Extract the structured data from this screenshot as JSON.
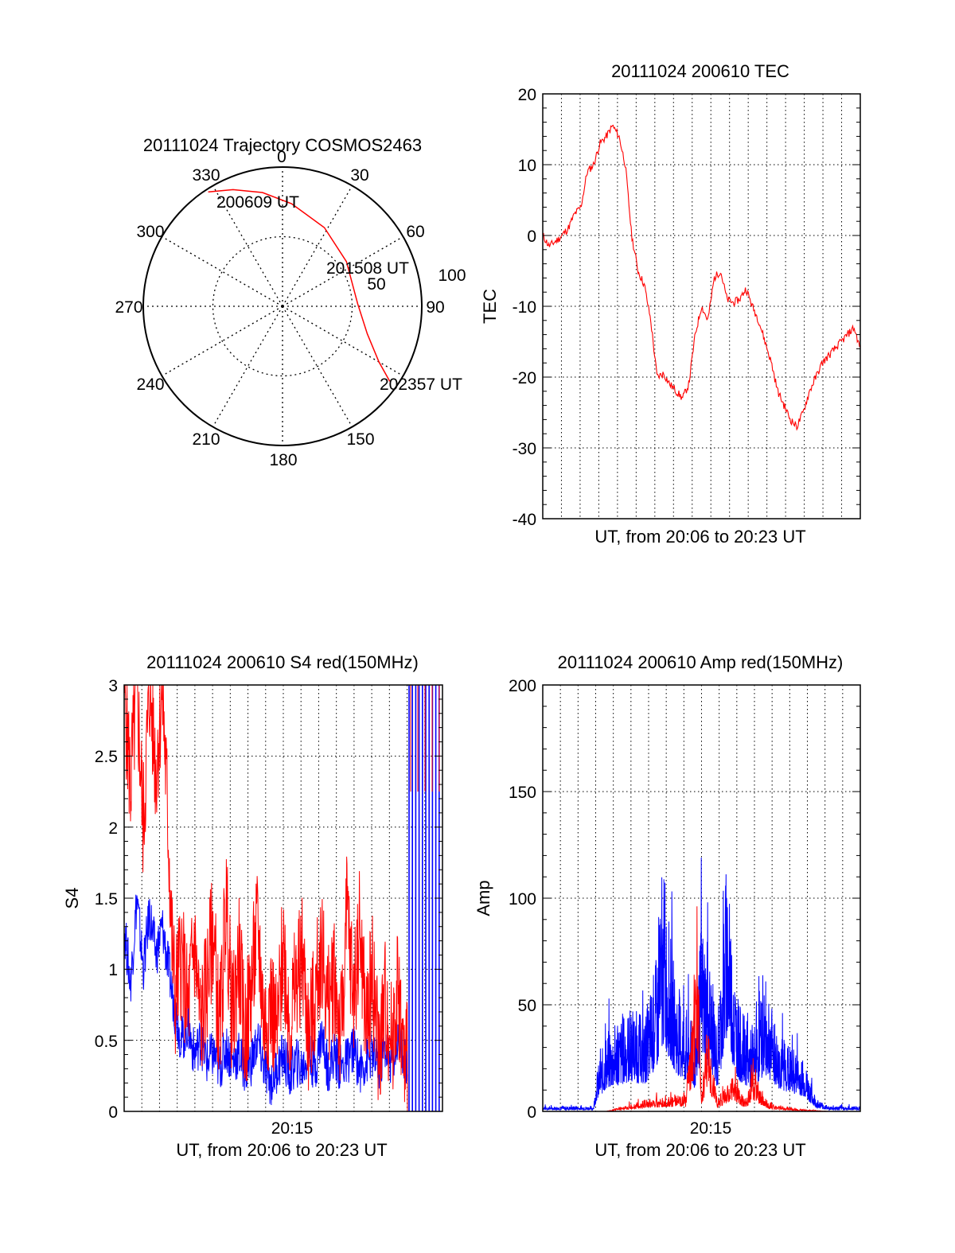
{
  "chart_data": [
    {
      "id": "trajectory",
      "type": "polar",
      "title": "20111024 Trajectory COSMOS2463",
      "azimuth_labels": [
        "0",
        "30",
        "60",
        "90",
        "150",
        "180",
        "210",
        "240",
        "270",
        "300",
        "330"
      ],
      "radial_labels": [
        "50",
        "100"
      ],
      "rlim": [
        0,
        100
      ],
      "grid": true,
      "series": [
        {
          "color": "#ff0000",
          "points": [
            {
              "az": 327,
              "el": 2
            },
            {
              "az": 337,
              "el": 9
            },
            {
              "az": 350,
              "el": 17
            },
            {
              "az": 5,
              "el": 26
            },
            {
              "az": 28,
              "el": 36
            },
            {
              "az": 55,
              "el": 44
            },
            {
              "az": 88,
              "el": 46
            },
            {
              "az": 108,
              "el": 36
            },
            {
              "az": 120,
              "el": 20
            },
            {
              "az": 125,
              "el": 6
            }
          ]
        }
      ],
      "annotations": [
        {
          "text": "200609 UT",
          "az": 327,
          "el": 2
        },
        {
          "text": "201508 UT",
          "az": 56,
          "el": 44
        },
        {
          "text": "202357 UT",
          "az": 125,
          "el": 6
        }
      ]
    },
    {
      "id": "tec",
      "type": "line",
      "title": "20111024 200610 TEC",
      "xlabel": "UT, from 20:06 to 20:23 UT",
      "ylabel": "TEC",
      "ylim": [
        -40,
        20
      ],
      "yticks": [
        "20",
        "10",
        "0",
        "-10",
        "-20",
        "-30",
        "-40"
      ],
      "grid": true,
      "series": [
        {
          "color": "#ff0000",
          "x": [
            0.0,
            0.02,
            0.05,
            0.08,
            0.1,
            0.12,
            0.14,
            0.16,
            0.18,
            0.2,
            0.22,
            0.24,
            0.26,
            0.28,
            0.3,
            0.32,
            0.34,
            0.36,
            0.38,
            0.4,
            0.42,
            0.44,
            0.46,
            0.48,
            0.5,
            0.52,
            0.54,
            0.56,
            0.58,
            0.6,
            0.62,
            0.64,
            0.66,
            0.68,
            0.7,
            0.72,
            0.74,
            0.76,
            0.78,
            0.8,
            0.82,
            0.84,
            0.86,
            0.88,
            0.9,
            0.92,
            0.94,
            0.96,
            0.98,
            1.0
          ],
          "values": [
            0,
            -1.5,
            -0.5,
            1,
            3,
            4,
            9,
            10,
            13,
            14,
            15.5,
            14,
            10,
            0,
            -5,
            -7,
            -12,
            -20,
            -19.5,
            -21,
            -22,
            -23,
            -21,
            -14,
            -10,
            -12,
            -6,
            -5,
            -9,
            -9.5,
            -9,
            -7.5,
            -10,
            -12,
            -15,
            -18,
            -22,
            -24,
            -26,
            -27,
            -25,
            -22,
            -20,
            -18,
            -17,
            -16,
            -15,
            -14,
            -13,
            -16
          ]
        }
      ]
    },
    {
      "id": "s4",
      "type": "line",
      "title": "20111024 200610 S4 red(150MHz)",
      "xlabel": "UT, from 20:06 to 20:23 UT",
      "ylabel": "S4",
      "ylim": [
        0,
        3
      ],
      "yticks": [
        "3",
        "2.5",
        "2",
        "1.5",
        "1",
        "0.5",
        "0"
      ],
      "xticks": [
        "20:15"
      ],
      "grid": true,
      "series": [
        {
          "color": "#ff0000",
          "x": [
            0.0,
            0.02,
            0.04,
            0.06,
            0.08,
            0.1,
            0.12,
            0.14,
            0.15,
            0.16,
            0.18,
            0.2,
            0.22,
            0.24,
            0.26,
            0.28,
            0.3,
            0.32,
            0.34,
            0.36,
            0.38,
            0.4,
            0.42,
            0.44,
            0.46,
            0.48,
            0.5,
            0.52,
            0.54,
            0.56,
            0.58,
            0.6,
            0.62,
            0.64,
            0.66,
            0.68,
            0.7,
            0.72,
            0.74,
            0.76,
            0.78,
            0.8,
            0.82,
            0.84,
            0.86,
            0.88,
            0.89
          ],
          "values": [
            3,
            2.3,
            3,
            2.0,
            3,
            2.4,
            3,
            1.9,
            1.2,
            0.8,
            1.1,
            0.7,
            1.2,
            0.6,
            0.9,
            1.3,
            0.5,
            1.5,
            0.6,
            1.1,
            0.5,
            0.9,
            1.3,
            0.6,
            0.8,
            0.5,
            1.2,
            0.6,
            0.9,
            1.1,
            0.5,
            0.8,
            1.2,
            0.7,
            1.0,
            0.5,
            1.4,
            0.8,
            1.3,
            0.6,
            1.0,
            0.4,
            0.8,
            0.5,
            0.9,
            0.3,
            0.4
          ]
        },
        {
          "color": "#0000ff",
          "x": [
            0.0,
            0.02,
            0.04,
            0.06,
            0.08,
            0.1,
            0.12,
            0.14,
            0.16,
            0.18,
            0.2,
            0.22,
            0.24,
            0.26,
            0.28,
            0.3,
            0.32,
            0.34,
            0.36,
            0.38,
            0.4,
            0.42,
            0.44,
            0.46,
            0.48,
            0.5,
            0.52,
            0.54,
            0.56,
            0.58,
            0.6,
            0.62,
            0.64,
            0.66,
            0.68,
            0.7,
            0.72,
            0.74,
            0.76,
            0.78,
            0.8,
            0.82,
            0.84,
            0.86,
            0.88,
            0.89
          ],
          "values": [
            1.3,
            0.9,
            1.5,
            1.0,
            1.4,
            1.1,
            1.3,
            1.0,
            0.7,
            0.5,
            0.6,
            0.4,
            0.5,
            0.35,
            0.4,
            0.3,
            0.45,
            0.35,
            0.4,
            0.3,
            0.35,
            0.5,
            0.3,
            0.2,
            0.3,
            0.4,
            0.25,
            0.35,
            0.3,
            0.4,
            0.3,
            0.55,
            0.3,
            0.4,
            0.3,
            0.35,
            0.45,
            0.3,
            0.35,
            0.4,
            0.3,
            0.45,
            0.35,
            0.5,
            0.4,
            0.3
          ]
        }
      ]
    },
    {
      "id": "amp",
      "type": "line",
      "title": "20111024 200610 Amp red(150MHz)",
      "xlabel": "UT, from 20:06 to 20:23 UT",
      "ylabel": "Amp",
      "ylim": [
        0,
        200
      ],
      "yticks": [
        "200",
        "150",
        "100",
        "50",
        "0"
      ],
      "xticks": [
        "20:15"
      ],
      "grid": true,
      "series": [
        {
          "color": "#0000ff",
          "x": [
            0.0,
            0.08,
            0.16,
            0.17,
            0.2,
            0.24,
            0.28,
            0.32,
            0.36,
            0.38,
            0.42,
            0.45,
            0.48,
            0.5,
            0.53,
            0.55,
            0.58,
            0.6,
            0.62,
            0.66,
            0.7,
            0.74,
            0.78,
            0.82,
            0.86,
            0.9,
            0.95,
            1.0
          ],
          "values": [
            2,
            2,
            2,
            15,
            30,
            35,
            40,
            35,
            60,
            90,
            50,
            40,
            30,
            75,
            55,
            30,
            100,
            60,
            40,
            30,
            50,
            30,
            25,
            20,
            5,
            2,
            2,
            2
          ]
        },
        {
          "color": "#ff0000",
          "x": [
            0.0,
            0.2,
            0.28,
            0.34,
            0.4,
            0.45,
            0.49,
            0.5,
            0.52,
            0.55,
            0.58,
            0.6,
            0.62,
            0.64,
            0.66,
            0.68,
            0.7,
            0.72,
            0.76,
            0.8,
            0.9,
            1.0
          ],
          "values": [
            0,
            0,
            3,
            5,
            6,
            6,
            65,
            10,
            30,
            5,
            10,
            15,
            8,
            5,
            15,
            10,
            5,
            3,
            2,
            1,
            0,
            0
          ]
        }
      ]
    }
  ]
}
